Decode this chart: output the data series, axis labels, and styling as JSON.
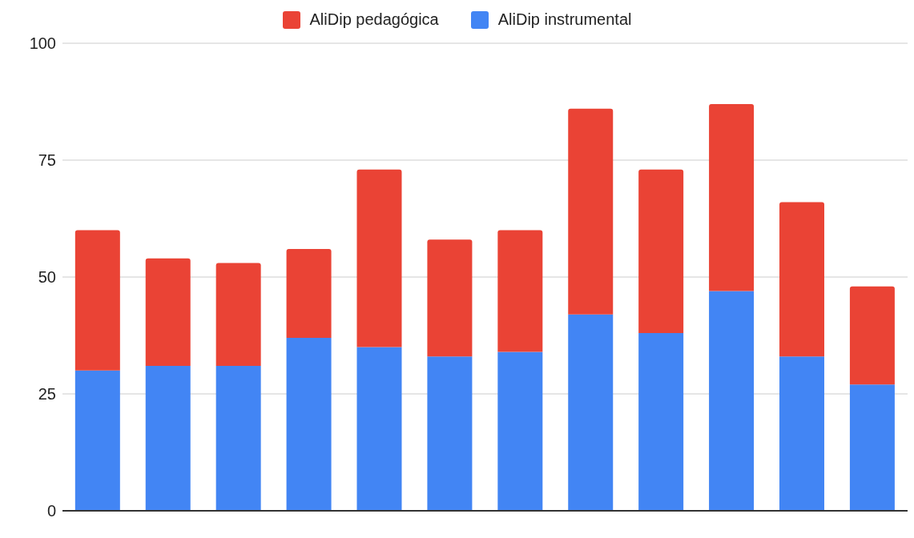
{
  "chart_data": {
    "type": "bar",
    "stacked": true,
    "categories": [
      null,
      null,
      null,
      null,
      null,
      null,
      null,
      null,
      null,
      null,
      null,
      null
    ],
    "series": [
      {
        "name": "AliDip instrumental",
        "color": "#4285f4",
        "values": [
          30,
          31,
          31,
          37,
          35,
          33,
          34,
          42,
          38,
          47,
          33,
          27
        ]
      },
      {
        "name": "AliDip pedagógica",
        "color": "#ea4335",
        "values": [
          30,
          23,
          22,
          19,
          38,
          25,
          26,
          44,
          35,
          40,
          33,
          21
        ]
      }
    ],
    "ylim": [
      0,
      100
    ],
    "yticks": [
      0,
      25,
      50,
      75,
      100
    ],
    "grid": "y",
    "legend": "top",
    "tick_labels": "y"
  }
}
